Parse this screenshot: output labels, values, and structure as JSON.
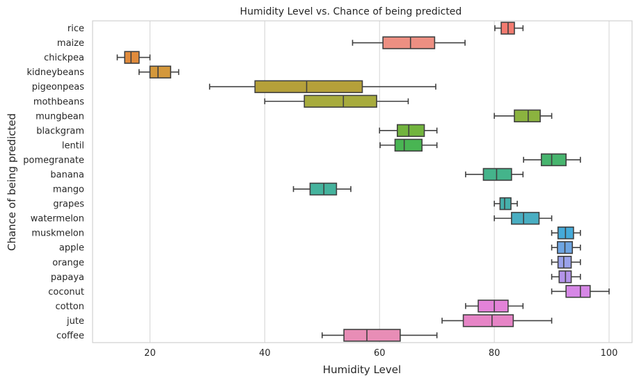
{
  "chart_data": {
    "type": "boxplot",
    "orientation": "horizontal",
    "title": "Humidity Level vs. Chance of being predicted",
    "xlabel": "Humidity Level",
    "ylabel": "Chance of being predicted",
    "xlim": [
      10,
      104
    ],
    "xticks": [
      20,
      40,
      60,
      80,
      100
    ],
    "grid": "vertical",
    "categories": [
      "rice",
      "maize",
      "chickpea",
      "kidneybeans",
      "pigeonpeas",
      "mothbeans",
      "mungbean",
      "blackgram",
      "lentil",
      "pomegranate",
      "banana",
      "mango",
      "grapes",
      "watermelon",
      "muskmelon",
      "apple",
      "orange",
      "papaya",
      "coconut",
      "cotton",
      "jute",
      "coffee"
    ],
    "boxes": [
      {
        "category": "rice",
        "whisker_low": 80.1,
        "q1": 81.2,
        "median": 82.4,
        "q3": 83.5,
        "whisker_high": 85.0,
        "color": "#f37b70"
      },
      {
        "category": "maize",
        "whisker_low": 55.3,
        "q1": 60.6,
        "median": 65.4,
        "q3": 69.6,
        "whisker_high": 74.9,
        "color": "#ed8f82"
      },
      {
        "category": "chickpea",
        "whisker_low": 14.3,
        "q1": 15.6,
        "median": 16.7,
        "q3": 18.1,
        "whisker_high": 20.0,
        "color": "#e08b3c"
      },
      {
        "category": "kidneybeans",
        "whisker_low": 18.1,
        "q1": 20.0,
        "median": 21.4,
        "q3": 23.6,
        "whisker_high": 25.0,
        "color": "#d4983c"
      },
      {
        "category": "pigeonpeas",
        "whisker_low": 30.4,
        "q1": 38.3,
        "median": 47.3,
        "q3": 57.0,
        "whisker_high": 69.8,
        "color": "#b5a03a"
      },
      {
        "category": "mothbeans",
        "whisker_low": 40.0,
        "q1": 46.9,
        "median": 53.7,
        "q3": 59.5,
        "whisker_high": 65.0,
        "color": "#a7ab3d"
      },
      {
        "category": "mungbean",
        "whisker_low": 80.0,
        "q1": 83.5,
        "median": 85.9,
        "q3": 88.0,
        "whisker_high": 90.0,
        "color": "#8bb33f"
      },
      {
        "category": "blackgram",
        "whisker_low": 60.0,
        "q1": 63.1,
        "median": 65.1,
        "q3": 67.8,
        "whisker_high": 70.0,
        "color": "#72b43e"
      },
      {
        "category": "lentil",
        "whisker_low": 60.1,
        "q1": 62.7,
        "median": 64.3,
        "q3": 67.4,
        "whisker_high": 70.0,
        "color": "#49b553"
      },
      {
        "category": "pomegranate",
        "whisker_low": 85.1,
        "q1": 88.2,
        "median": 90.0,
        "q3": 92.5,
        "whisker_high": 95.0,
        "color": "#47b56e"
      },
      {
        "category": "banana",
        "whisker_low": 75.0,
        "q1": 78.1,
        "median": 80.4,
        "q3": 83.0,
        "whisker_high": 85.0,
        "color": "#44b48b"
      },
      {
        "category": "mango",
        "whisker_low": 45.0,
        "q1": 47.9,
        "median": 50.3,
        "q3": 52.5,
        "whisker_high": 55.0,
        "color": "#45b39d"
      },
      {
        "category": "grapes",
        "whisker_low": 80.0,
        "q1": 81.0,
        "median": 81.8,
        "q3": 82.9,
        "whisker_high": 84.0,
        "color": "#46b0ab"
      },
      {
        "category": "watermelon",
        "whisker_low": 80.0,
        "q1": 83.0,
        "median": 85.1,
        "q3": 87.8,
        "whisker_high": 90.0,
        "color": "#49aec2"
      },
      {
        "category": "muskmelon",
        "whisker_low": 90.0,
        "q1": 91.1,
        "median": 92.4,
        "q3": 93.8,
        "whisker_high": 95.0,
        "color": "#45aad9"
      },
      {
        "category": "apple",
        "whisker_low": 90.0,
        "q1": 91.0,
        "median": 92.3,
        "q3": 93.6,
        "whisker_high": 95.0,
        "color": "#6ea5e2"
      },
      {
        "category": "orange",
        "whisker_low": 90.0,
        "q1": 91.1,
        "median": 92.1,
        "q3": 93.4,
        "whisker_high": 95.0,
        "color": "#9aa2eb"
      },
      {
        "category": "papaya",
        "whisker_low": 90.0,
        "q1": 91.3,
        "median": 92.4,
        "q3": 93.4,
        "whisker_high": 95.0,
        "color": "#b494ea"
      },
      {
        "category": "coconut",
        "whisker_low": 90.0,
        "q1": 92.5,
        "median": 95.0,
        "q3": 96.7,
        "whisker_high": 100.0,
        "color": "#d687e6"
      },
      {
        "category": "cotton",
        "whisker_low": 75.0,
        "q1": 77.2,
        "median": 80.0,
        "q3": 82.4,
        "whisker_high": 85.0,
        "color": "#e382d8"
      },
      {
        "category": "jute",
        "whisker_low": 70.9,
        "q1": 74.6,
        "median": 79.6,
        "q3": 83.3,
        "whisker_high": 90.0,
        "color": "#e684c6"
      },
      {
        "category": "coffee",
        "whisker_low": 50.0,
        "q1": 53.8,
        "median": 57.8,
        "q3": 63.6,
        "whisker_high": 70.0,
        "color": "#e88db6"
      }
    ]
  }
}
